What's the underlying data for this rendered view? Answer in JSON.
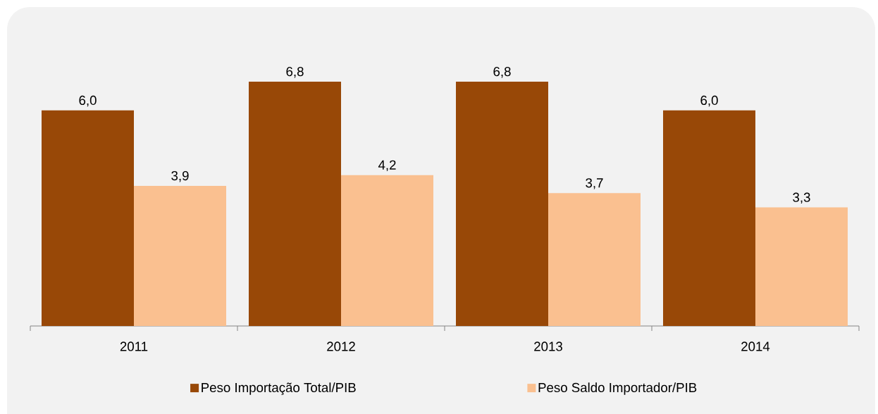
{
  "chart_data": {
    "type": "bar",
    "categories": [
      "2011",
      "2012",
      "2013",
      "2014"
    ],
    "series": [
      {
        "name": "Peso Importação Total/PIB",
        "color": "#984807",
        "values": [
          6.0,
          6.8,
          6.8,
          6.0
        ],
        "value_labels": [
          "6,0",
          "6,8",
          "6,8",
          "6,0"
        ]
      },
      {
        "name": "Peso Saldo Importador/PIB",
        "color": "#fac090",
        "values": [
          3.9,
          4.2,
          3.7,
          3.3
        ],
        "value_labels": [
          "3,9",
          "4,2",
          "3,7",
          "3,3"
        ]
      }
    ],
    "legend": "bottom",
    "tick_labels": "x"
  }
}
